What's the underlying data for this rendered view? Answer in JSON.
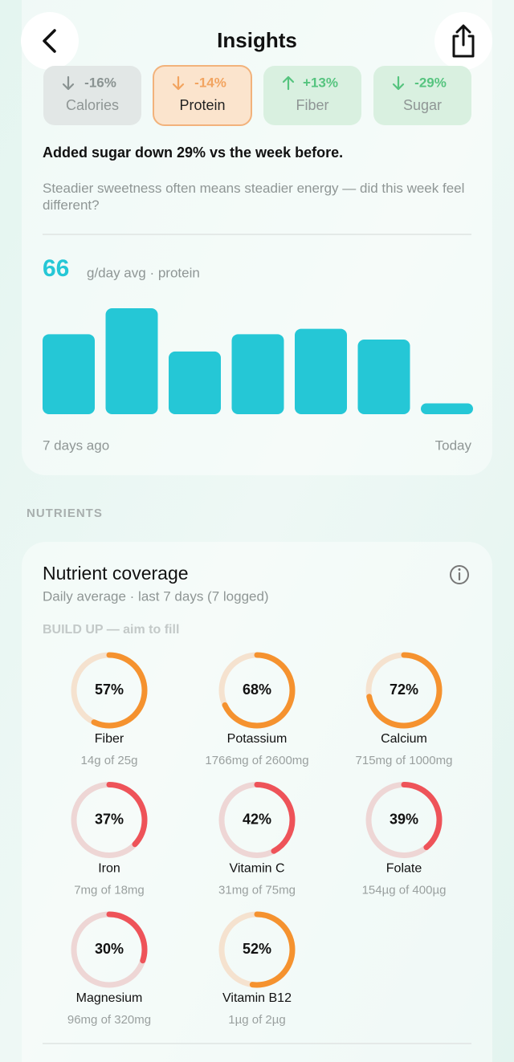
{
  "header": {
    "title": "Insights"
  },
  "chips": [
    {
      "change": "-16%",
      "label": "Calories",
      "color": "#8a9392",
      "background": "#e2e7e6"
    },
    {
      "change": "-14%",
      "label": "Protein",
      "color": "#f2a460",
      "background": "#fbe4cd"
    },
    {
      "change": "+13%",
      "label": "Fiber",
      "color": "#56c47f",
      "background": "#d9f0e0"
    },
    {
      "change": "-29%",
      "label": "Sugar",
      "color": "#56c47f",
      "background": "#d9f0e0"
    }
  ],
  "insight": {
    "headline": "Added sugar down 29% vs the week before.",
    "body": "Steadier sweetness often means steadier energy — did this week feel different?"
  },
  "protein_chart": {
    "type": "bar",
    "average": "66",
    "unit_label": "g/day avg · protein",
    "values": [
      74,
      98,
      58,
      74,
      79,
      69,
      10
    ],
    "color": "#25c7d6",
    "start_label": "7 days ago",
    "end_label": "Today"
  },
  "section_label": "NUTRIENTS",
  "coverage": {
    "title": "Nutrient coverage",
    "subtitle": "Daily average · last 7 days (7 logged)",
    "group_label": "BUILD UP — aim to fill",
    "nutrients": [
      {
        "name": "Fiber",
        "value": 57,
        "value_label": "57%",
        "detail": "14g of 25g",
        "color": "#f5922f",
        "track": "#f5e2cf"
      },
      {
        "name": "Potassium",
        "value": 68,
        "value_label": "68%",
        "detail": "1766mg of 2600mg",
        "color": "#f5922f",
        "track": "#f5e2cf"
      },
      {
        "name": "Calcium",
        "value": 72,
        "value_label": "72%",
        "detail": "715mg of 1000mg",
        "color": "#f5922f",
        "track": "#f5e2cf"
      },
      {
        "name": "Iron",
        "value": 37,
        "value_label": "37%",
        "detail": "7mg of 18mg",
        "color": "#ee5359",
        "track": "#eed6d5"
      },
      {
        "name": "Vitamin C",
        "value": 42,
        "value_label": "42%",
        "detail": "31mg of 75mg",
        "color": "#ee5359",
        "track": "#eed6d5"
      },
      {
        "name": "Folate",
        "value": 39,
        "value_label": "39%",
        "detail": "154µg of 400µg",
        "color": "#ee5359",
        "track": "#eed6d5"
      },
      {
        "name": "Magnesium",
        "value": 30,
        "value_label": "30%",
        "detail": "96mg of 320mg",
        "color": "#ee5359",
        "track": "#eed6d5"
      },
      {
        "name": "Vitamin B12",
        "value": 52,
        "value_label": "52%",
        "detail": "1µg of 2µg",
        "color": "#f5922f",
        "track": "#f5e2cf"
      }
    ]
  }
}
